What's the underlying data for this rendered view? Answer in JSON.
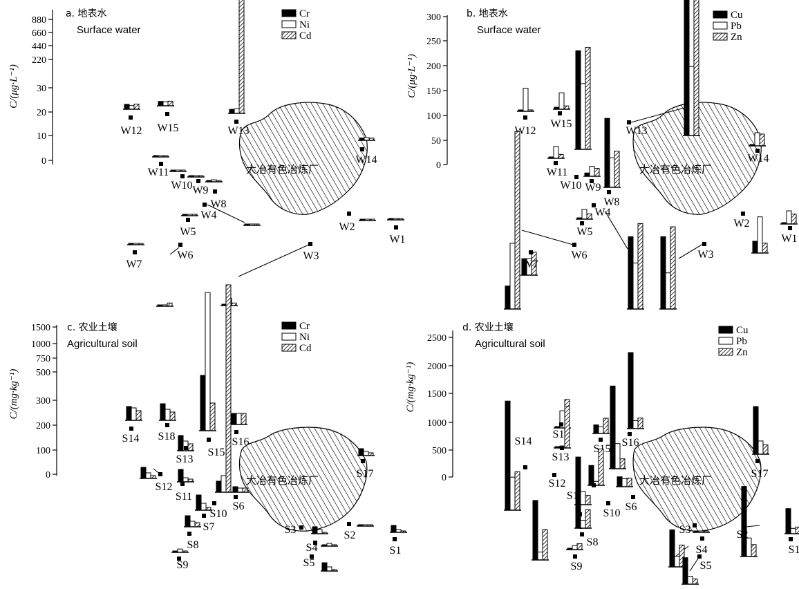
{
  "colors": {
    "series1": "#000000",
    "series2": "#ffffff",
    "series3": "#9a9a9a",
    "outline": "#000000"
  },
  "smelter_label": "大冶有色冶炼厂",
  "chart_data": [
    {
      "type": "bar",
      "panel_title": "a. 地表水",
      "panel_subtitle": "Surface water",
      "ylabel": "C/(μg·L⁻¹)",
      "y_ticks": [
        "880",
        "660",
        "440",
        "220",
        "30",
        "20",
        "10",
        "0"
      ],
      "legend_position": "top-right",
      "series_names": [
        "Cr",
        "Ni",
        "Cd"
      ],
      "sites": [
        {
          "name": "W12",
          "values": [
            27,
            20,
            28
          ]
        },
        {
          "name": "W15",
          "values": [
            24,
            22,
            25
          ]
        },
        {
          "name": "W13",
          "values": [
            22,
            25,
            740
          ]
        },
        {
          "name": "W11",
          "values": [
            7,
            6,
            5
          ]
        },
        {
          "name": "W10",
          "values": [
            1,
            2,
            6
          ]
        },
        {
          "name": "W9",
          "values": [
            1,
            3,
            2
          ]
        },
        {
          "name": "W8",
          "values": [
            2,
            11,
            3
          ]
        },
        {
          "name": "W14",
          "values": [
            13,
            15,
            12
          ]
        },
        {
          "name": "W4",
          "values": [
            6,
            4,
            4
          ]
        },
        {
          "name": "W5",
          "values": [
            1,
            3,
            3
          ]
        },
        {
          "name": "W2",
          "values": [
            2,
            3,
            4
          ]
        },
        {
          "name": "W1",
          "values": [
            2,
            3,
            3
          ]
        },
        {
          "name": "W7",
          "values": [
            2,
            5,
            4
          ]
        },
        {
          "name": "W6",
          "values": [
            2,
            3,
            18
          ]
        },
        {
          "name": "W3",
          "values": [
            7,
            40,
            14
          ]
        }
      ]
    },
    {
      "type": "bar",
      "panel_title": "b. 地表水",
      "panel_subtitle": "Surface water",
      "ylabel": "C/(μg·L⁻¹)",
      "y_ticks": [
        "300",
        "250",
        "200",
        "150",
        "100",
        "50",
        "0"
      ],
      "legend_position": "top-right",
      "series_names": [
        "Cu",
        "Pb",
        "Zn"
      ],
      "sites": [
        {
          "name": "W12",
          "values": [
            0,
            35,
            2
          ]
        },
        {
          "name": "W15",
          "values": [
            3,
            25,
            5
          ]
        },
        {
          "name": "W13",
          "values": [
            210,
            105,
            305
          ]
        },
        {
          "name": "W11",
          "values": [
            2,
            18,
            6
          ]
        },
        {
          "name": "W10",
          "values": [
            150,
            100,
            155
          ]
        },
        {
          "name": "W9",
          "values": [
            5,
            15,
            12
          ]
        },
        {
          "name": "W8",
          "values": [
            105,
            45,
            55
          ]
        },
        {
          "name": "W14",
          "values": [
            2,
            20,
            18
          ]
        },
        {
          "name": "W5",
          "values": [
            0,
            15,
            8
          ]
        },
        {
          "name": "W4",
          "values": [
            110,
            70,
            130
          ]
        },
        {
          "name": "W2",
          "values": [
            18,
            55,
            15
          ]
        },
        {
          "name": "W1",
          "values": [
            2,
            20,
            15
          ]
        },
        {
          "name": "W7",
          "values": [
            25,
            25,
            35
          ]
        },
        {
          "name": "W6",
          "values": [
            35,
            100,
            270
          ]
        },
        {
          "name": "W3",
          "values": [
            110,
            55,
            125
          ]
        }
      ]
    },
    {
      "type": "bar",
      "panel_title": "c. 农业土壤",
      "panel_subtitle": "Agricultural soil",
      "ylabel": "C/(mg·kg⁻¹)",
      "y_ticks": [
        "1500",
        "1000",
        "750",
        "500",
        "300",
        "200",
        "100",
        "0"
      ],
      "legend_position": "top-right",
      "series_names": [
        "Cr",
        "Ni",
        "Cd"
      ],
      "sites": [
        {
          "name": "S14",
          "values": [
            50,
            45,
            35
          ]
        },
        {
          "name": "S18",
          "values": [
            60,
            40,
            30
          ]
        },
        {
          "name": "S13",
          "values": [
            55,
            35,
            25
          ]
        },
        {
          "name": "S15",
          "values": [
            200,
            500,
            100
          ]
        },
        {
          "name": "S16",
          "values": [
            40,
            40,
            40
          ]
        },
        {
          "name": "S12",
          "values": [
            40,
            20,
            10
          ]
        },
        {
          "name": "S11",
          "values": [
            45,
            15,
            10
          ]
        },
        {
          "name": "S10",
          "values": [
            40,
            60,
            750
          ]
        },
        {
          "name": "S6",
          "values": [
            20,
            15,
            15
          ]
        },
        {
          "name": "S17",
          "values": [
            25,
            15,
            10
          ]
        },
        {
          "name": "S7",
          "values": [
            55,
            25,
            10
          ]
        },
        {
          "name": "S8",
          "values": [
            40,
            20,
            15
          ]
        },
        {
          "name": "S9",
          "values": [
            0,
            12,
            5
          ]
        },
        {
          "name": "S3",
          "values": [
            25,
            15,
            5
          ]
        },
        {
          "name": "S4",
          "values": [
            0,
            10,
            5
          ]
        },
        {
          "name": "S5",
          "values": [
            30,
            15,
            5
          ]
        },
        {
          "name": "S2",
          "values": [
            5,
            5,
            5
          ]
        },
        {
          "name": "S1",
          "values": [
            25,
            10,
            5
          ]
        }
      ]
    },
    {
      "type": "bar",
      "panel_title": "d. 农业土壤",
      "panel_subtitle": "Agricultural soil",
      "ylabel": "C/(mg·kg⁻¹)",
      "y_ticks": [
        "2500",
        "2000",
        "1500",
        "1000",
        "500",
        "0"
      ],
      "legend_position": "top-right",
      "series_names": [
        "Cu",
        "Pb",
        "Zn"
      ],
      "sites": [
        {
          "name": "S14",
          "values": [
            1650,
            500,
            580
          ]
        },
        {
          "name": "S18",
          "values": [
            20,
            260,
            430
          ]
        },
        {
          "name": "S13",
          "values": [
            0,
            30,
            630
          ]
        },
        {
          "name": "S15",
          "values": [
            130,
            100,
            230
          ]
        },
        {
          "name": "S16",
          "values": [
            1150,
            120,
            160
          ]
        },
        {
          "name": "S12",
          "values": [
            900,
            120,
            460
          ]
        },
        {
          "name": "S11",
          "values": [
            300,
            60,
            550
          ]
        },
        {
          "name": "S10",
          "values": [
            1250,
            380,
            150
          ]
        },
        {
          "name": "S6",
          "values": [
            150,
            120,
            130
          ]
        },
        {
          "name": "S17",
          "values": [
            720,
            200,
            140
          ]
        },
        {
          "name": "S7",
          "values": [
            720,
            200,
            140
          ]
        },
        {
          "name": "S8",
          "values": [
            450,
            120,
            280
          ]
        },
        {
          "name": "S9",
          "values": [
            20,
            60,
            90
          ]
        },
        {
          "name": "S3",
          "values": [
            0,
            0,
            0
          ]
        },
        {
          "name": "S4",
          "values": [
            560,
            160,
            330
          ]
        },
        {
          "name": "S5",
          "values": [
            400,
            120,
            80
          ]
        },
        {
          "name": "S2",
          "values": [
            1060,
            280,
            180
          ]
        },
        {
          "name": "S1",
          "values": [
            380,
            80,
            100
          ]
        }
      ]
    }
  ]
}
